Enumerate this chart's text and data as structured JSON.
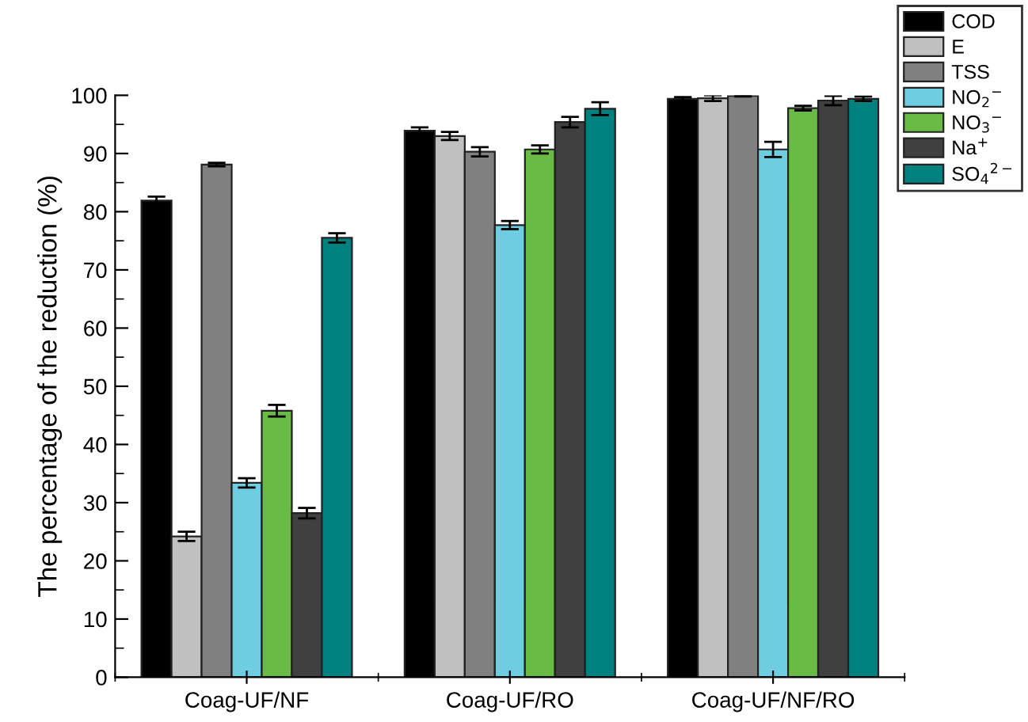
{
  "chart_data": {
    "type": "bar",
    "ylabel": "The percentage of the reduction (%)",
    "categories": [
      "Coag-UF/NF",
      "Coag-UF/RO",
      "Coag-UF/NF/RO"
    ],
    "ylim": [
      0,
      100
    ],
    "yticks": [
      0,
      10,
      20,
      30,
      40,
      50,
      60,
      70,
      80,
      90,
      100
    ],
    "legend": "top right",
    "grid": false,
    "series": [
      {
        "name": "COD",
        "color": "#000000",
        "values": [
          81.9,
          93.9,
          99.4
        ],
        "errors": [
          0.7,
          0.6,
          0.3
        ]
      },
      {
        "name": "E",
        "color": "#c0c0c0",
        "values": [
          24.2,
          93.0,
          99.5
        ],
        "errors": [
          0.8,
          0.7,
          0.5
        ]
      },
      {
        "name": "TSS",
        "color": "#808080",
        "values": [
          88.1,
          90.3,
          99.9
        ],
        "errors": [
          0.3,
          0.8,
          0.1
        ]
      },
      {
        "name": "NO$_{2}$$^{−}$",
        "color": "#6ecde0",
        "values": [
          33.4,
          77.7,
          90.7
        ],
        "errors": [
          0.8,
          0.7,
          1.3
        ]
      },
      {
        "name": "NO$_{3}$$^{−}$",
        "color": "#6abb46",
        "values": [
          45.8,
          90.7,
          97.8
        ],
        "errors": [
          1.0,
          0.7,
          0.4
        ]
      },
      {
        "name": "Na$^{+}$",
        "color": "#404040",
        "values": [
          28.2,
          95.4,
          99.1
        ],
        "errors": [
          0.9,
          0.9,
          0.8
        ]
      },
      {
        "name": "SO$_{4}$$^{2−}$",
        "color": "#00807f",
        "values": [
          75.5,
          97.7,
          99.4
        ],
        "errors": [
          0.8,
          1.1,
          0.4
        ]
      }
    ]
  }
}
